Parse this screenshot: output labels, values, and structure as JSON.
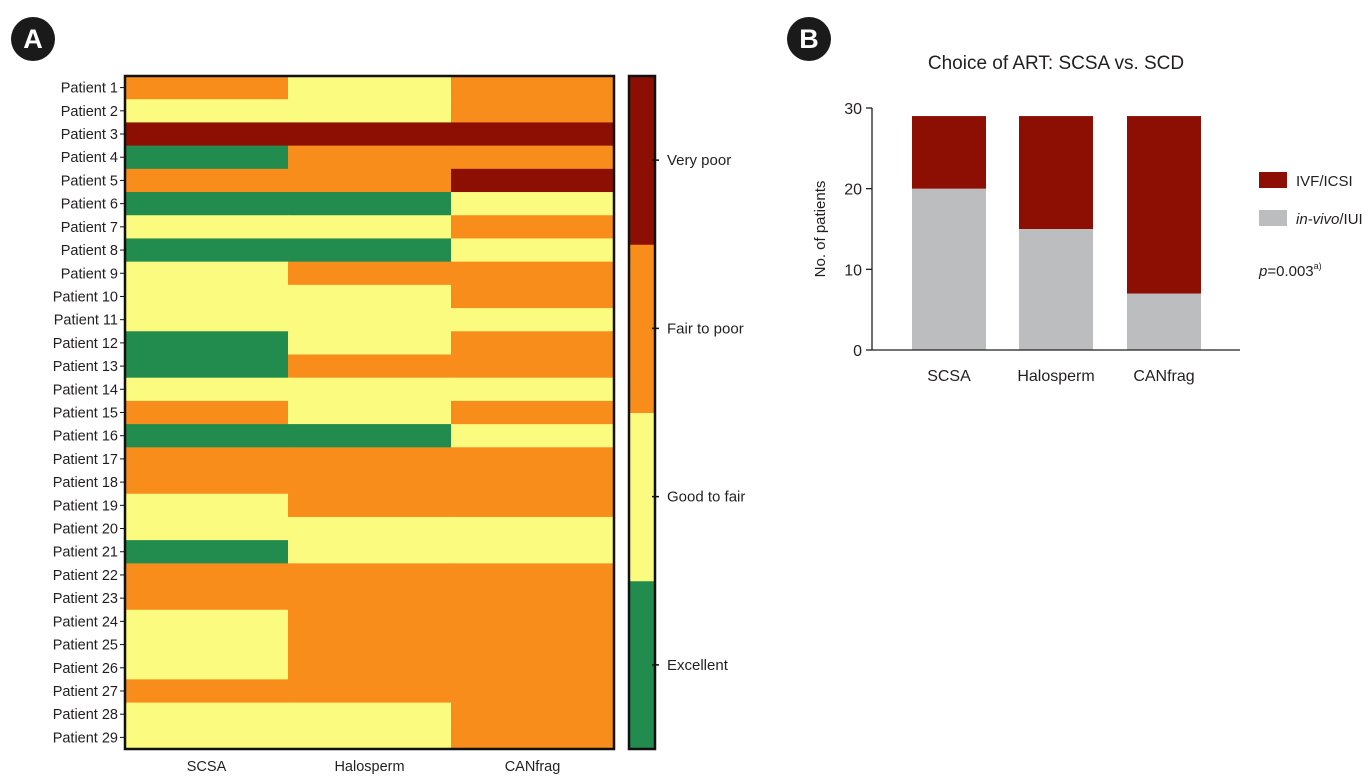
{
  "panels": {
    "a_label": "A",
    "b_label": "B"
  },
  "colors": {
    "excellent": "#228b4e",
    "good_to_fair": "#fbfb7f",
    "fair_to_poor": "#f98d1b",
    "very_poor": "#8d0f03",
    "ivf_icsi": "#8d0f03",
    "in_vivo_iui": "#bcbdbf"
  },
  "chart_data": [
    {
      "type": "heatmap",
      "title": "",
      "columns": [
        "SCSA",
        "Halosperm",
        "CANfrag"
      ],
      "rows": [
        "Patient 1",
        "Patient 2",
        "Patient 3",
        "Patient 4",
        "Patient 5",
        "Patient 6",
        "Patient 7",
        "Patient 8",
        "Patient 9",
        "Patient 10",
        "Patient 11",
        "Patient 12",
        "Patient 13",
        "Patient 14",
        "Patient 15",
        "Patient 16",
        "Patient 17",
        "Patient 18",
        "Patient 19",
        "Patient 20",
        "Patient 21",
        "Patient 22",
        "Patient 23",
        "Patient 24",
        "Patient 25",
        "Patient 26",
        "Patient 27",
        "Patient 28",
        "Patient 29"
      ],
      "scale": [
        "Excellent",
        "Good to fair",
        "Fair to poor",
        "Very poor"
      ],
      "values": [
        [
          2,
          1,
          2
        ],
        [
          1,
          1,
          2
        ],
        [
          3,
          3,
          3
        ],
        [
          0,
          2,
          2
        ],
        [
          2,
          2,
          3
        ],
        [
          0,
          0,
          1
        ],
        [
          1,
          1,
          2
        ],
        [
          0,
          0,
          1
        ],
        [
          1,
          2,
          2
        ],
        [
          1,
          1,
          2
        ],
        [
          1,
          1,
          1
        ],
        [
          0,
          1,
          2
        ],
        [
          0,
          2,
          2
        ],
        [
          1,
          1,
          1
        ],
        [
          2,
          1,
          2
        ],
        [
          0,
          0,
          1
        ],
        [
          2,
          2,
          2
        ],
        [
          2,
          2,
          2
        ],
        [
          1,
          2,
          2
        ],
        [
          1,
          1,
          1
        ],
        [
          0,
          1,
          1
        ],
        [
          2,
          2,
          2
        ],
        [
          2,
          2,
          2
        ],
        [
          1,
          2,
          2
        ],
        [
          1,
          2,
          2
        ],
        [
          1,
          2,
          2
        ],
        [
          2,
          2,
          2
        ],
        [
          1,
          1,
          2
        ],
        [
          1,
          1,
          2
        ]
      ],
      "legend": "right"
    },
    {
      "type": "bar",
      "stacked": true,
      "title": "Choice of ART: SCSA vs. SCD",
      "categories": [
        "SCSA",
        "Halosperm",
        "CANfrag"
      ],
      "series": [
        {
          "name": "in-vivo/IUI",
          "values": [
            20,
            15,
            7
          ]
        },
        {
          "name": "IVF/ICSI",
          "values": [
            9,
            14,
            22
          ]
        }
      ],
      "ylabel": "No. of patients",
      "xlabel": "",
      "ylim": [
        0,
        30
      ],
      "yticks": [
        0,
        10,
        20,
        30
      ],
      "legend": "right",
      "legend_labels": {
        "ivf": "IVF/ICSI",
        "invivo_italic": "in-vivo",
        "invivo_rest": "/IUI"
      },
      "annotation": {
        "p_italic": "p",
        "text": "=0.003",
        "superscript": "a)"
      }
    }
  ]
}
